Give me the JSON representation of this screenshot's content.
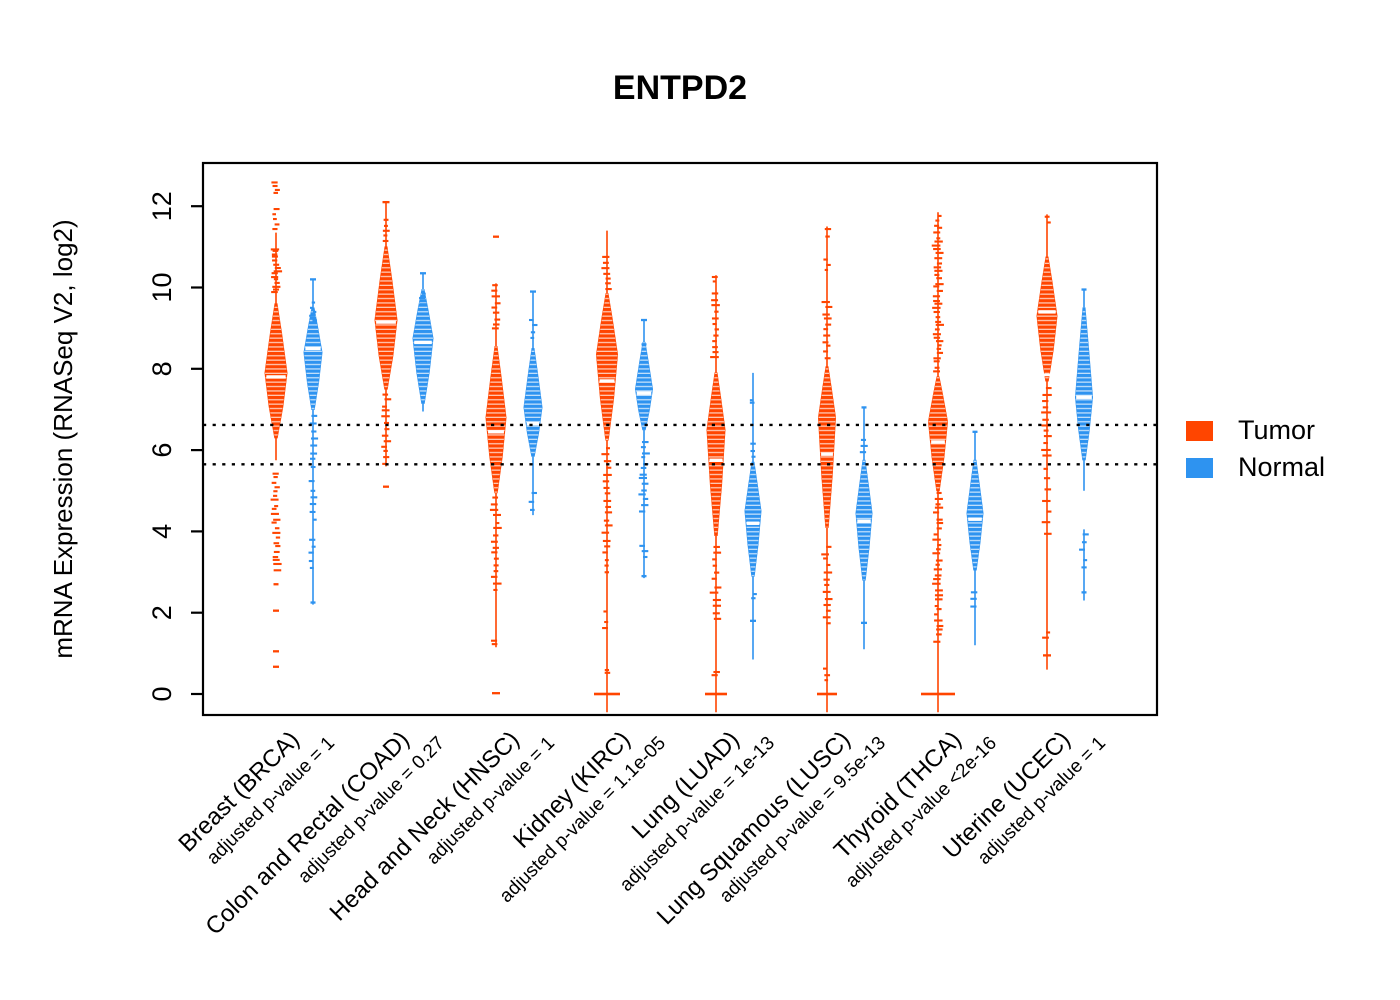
{
  "title": "ENTPD2",
  "y_axis": {
    "label": "mRNA Expression (RNASeq V2, log2)",
    "ticks": [
      0,
      2,
      4,
      6,
      8,
      10,
      12
    ]
  },
  "legend": {
    "items": [
      {
        "label": "Tumor",
        "color": "#FF4500"
      },
      {
        "label": "Normal",
        "color": "#2E93F0"
      }
    ]
  },
  "reference_lines": {
    "values": [
      6.62,
      5.65
    ],
    "style": "dotted",
    "color": "#000000"
  },
  "chart_data": {
    "type": "violin",
    "title": "ENTPD2",
    "ylabel": "mRNA Expression (RNASeq V2, log2)",
    "ylim": [
      -0.5,
      13.1
    ],
    "series": [
      "Tumor",
      "Normal"
    ],
    "legend_position": "right",
    "grid": false,
    "groups": [
      {
        "label": "Breast (BRCA)",
        "pvalue_label": "adjusted p-value = 1",
        "tumor": {
          "median": 7.8,
          "body": [
            6.3,
            9.6
          ],
          "peak": 7.9,
          "halfwidth": 11,
          "stems": [
            [
              5.75,
              11.35
            ]
          ],
          "bands": [
            [
              9.85,
              11.0,
              15,
              6
            ],
            [
              11.35,
              12.0,
              5,
              5
            ],
            [
              12.25,
              12.65,
              4,
              5
            ],
            [
              3.0,
              5.5,
              22,
              6
            ]
          ],
          "points": [
            [
              2.7,
              5
            ],
            [
              2.05,
              6
            ],
            [
              1.05,
              6
            ],
            [
              0.67,
              6
            ]
          ],
          "zero_bar_width": 0,
          "extra_white_band": null
        },
        "normal": {
          "median": 8.5,
          "body": [
            7.0,
            9.5
          ],
          "peak": 8.4,
          "halfwidth": 9,
          "stems": [
            [
              2.2,
              10.2
            ]
          ],
          "bands": [
            [
              9.0,
              9.7,
              6,
              5
            ],
            [
              5.5,
              6.9,
              8,
              5
            ],
            [
              4.2,
              5.3,
              6,
              5
            ],
            [
              3.0,
              3.9,
              5,
              5
            ]
          ],
          "points": [
            [
              10.2,
              6
            ],
            [
              2.25,
              5
            ]
          ],
          "zero_bar_width": 0,
          "extra_white_band": null
        }
      },
      {
        "label": "Colon and Rectal (COAD)",
        "pvalue_label": "adjusted p-value = 0.27",
        "tumor": {
          "median": 9.15,
          "body": [
            7.5,
            11.0
          ],
          "peak": 9.2,
          "halfwidth": 11,
          "stems": [
            [
              5.6,
              12.1
            ]
          ],
          "bands": [
            [
              11.05,
              11.75,
              5,
              5
            ],
            [
              5.6,
              7.45,
              13,
              6
            ]
          ],
          "points": [
            [
              12.1,
              7
            ],
            [
              5.1,
              6
            ]
          ],
          "zero_bar_width": 0,
          "extra_white_band": null
        },
        "normal": {
          "median": 8.65,
          "body": [
            7.15,
            9.95
          ],
          "peak": 8.75,
          "halfwidth": 10,
          "stems": [
            [
              6.95,
              10.35
            ]
          ],
          "bands": [
            [
              9.55,
              9.9,
              3,
              5
            ]
          ],
          "points": [
            [
              10.35,
              6
            ]
          ],
          "zero_bar_width": 0,
          "extra_white_band": null
        }
      },
      {
        "label": "Head and Neck (HNSC)",
        "pvalue_label": "adjusted p-value = 1",
        "tumor": {
          "median": 6.45,
          "body": [
            4.95,
            8.55
          ],
          "peak": 6.8,
          "halfwidth": 10,
          "stems": [
            [
              1.15,
              10.1
            ]
          ],
          "bands": [
            [
              8.9,
              10.1,
              9,
              6
            ],
            [
              2.5,
              4.9,
              16,
              6
            ],
            [
              1.15,
              1.35,
              2,
              5
            ]
          ],
          "points": [
            [
              11.25,
              6
            ],
            [
              0.02,
              8
            ]
          ],
          "zero_bar_width": 0,
          "extra_white_band": null
        },
        "normal": {
          "median": 6.65,
          "body": [
            5.85,
            8.5
          ],
          "peak": 7.05,
          "halfwidth": 9,
          "stems": [
            [
              4.4,
              9.9
            ]
          ],
          "bands": [
            [
              8.7,
              9.3,
              4,
              5
            ],
            [
              4.45,
              5.05,
              3,
              6
            ]
          ],
          "points": [
            [
              9.9,
              6
            ]
          ],
          "zero_bar_width": 0,
          "extra_white_band": null
        }
      },
      {
        "label": "Kidney (KIRC)",
        "pvalue_label": "adjusted p-value = 1.1e-05",
        "tumor": {
          "median": 7.7,
          "body": [
            6.25,
            9.85
          ],
          "peak": 8.35,
          "halfwidth": 10.5,
          "stems": [
            [
              -0.45,
              11.4
            ]
          ],
          "bands": [
            [
              9.9,
              10.8,
              7,
              6
            ],
            [
              2.9,
              6.15,
              20,
              6
            ],
            [
              1.5,
              2.1,
              3,
              5
            ],
            [
              0.5,
              0.65,
              2,
              5
            ]
          ],
          "points": [],
          "zero_bar_width": 26,
          "extra_white_band": null
        },
        "normal": {
          "median": 7.4,
          "body": [
            6.5,
            8.65
          ],
          "peak": 7.5,
          "halfwidth": 8.5,
          "stems": [
            [
              2.85,
              9.2
            ]
          ],
          "bands": [
            [
              4.45,
              6.25,
              14,
              6
            ],
            [
              3.3,
              3.7,
              3,
              5
            ]
          ],
          "points": [
            [
              9.2,
              6
            ],
            [
              8.6,
              5
            ],
            [
              2.9,
              5
            ]
          ],
          "zero_bar_width": 0,
          "extra_white_band": null
        }
      },
      {
        "label": "Lung (LUAD)",
        "pvalue_label": "adjusted p-value = 1e-13",
        "tumor": {
          "median": 5.75,
          "body": [
            3.9,
            7.9
          ],
          "peak": 6.5,
          "halfwidth": 9,
          "stems": [
            [
              -0.45,
              10.3
            ]
          ],
          "bands": [
            [
              8.2,
              9.9,
              12,
              6
            ],
            [
              10.1,
              10.3,
              2,
              5
            ],
            [
              1.75,
              3.7,
              12,
              6
            ],
            [
              0.45,
              0.6,
              2,
              5
            ]
          ],
          "points": [],
          "zero_bar_width": 22,
          "extra_white_band": null
        },
        "normal": {
          "median": 4.2,
          "body": [
            2.9,
            5.7
          ],
          "peak": 4.5,
          "halfwidth": 8,
          "stems": [
            [
              0.85,
              7.9
            ]
          ],
          "bands": [
            [
              5.8,
              6.2,
              3,
              5
            ],
            [
              7.1,
              7.3,
              2,
              5
            ],
            [
              2.3,
              2.55,
              2,
              5
            ]
          ],
          "points": [
            [
              1.8,
              6
            ]
          ],
          "zero_bar_width": 0,
          "extra_white_band": null
        }
      },
      {
        "label": "Lung Squamous (LUSC)",
        "pvalue_label": "adjusted p-value = 9.5e-13",
        "tumor": {
          "median": 5.9,
          "body": [
            4.1,
            8.05
          ],
          "peak": 6.8,
          "halfwidth": 8.5,
          "stems": [
            [
              -0.45,
              11.5
            ]
          ],
          "bands": [
            [
              8.2,
              9.7,
              11,
              6
            ],
            [
              10.35,
              10.75,
              3,
              5
            ],
            [
              11.2,
              11.5,
              2,
              5
            ],
            [
              1.65,
              3.7,
              13,
              6
            ],
            [
              0.25,
              0.7,
              3,
              5
            ]
          ],
          "points": [],
          "zero_bar_width": 20,
          "extra_white_band": null
        },
        "normal": {
          "median": 4.25,
          "body": [
            2.8,
            5.75
          ],
          "peak": 4.45,
          "halfwidth": 8,
          "stems": [
            [
              1.1,
              7.05
            ]
          ],
          "bands": [
            [
              5.85,
              6.35,
              3,
              6
            ]
          ],
          "points": [
            [
              7.05,
              5
            ],
            [
              1.75,
              6
            ]
          ],
          "zero_bar_width": 0,
          "extra_white_band": null
        }
      },
      {
        "label": "Thyroid (THCA)",
        "pvalue_label": "adjusted p-value <2e-16",
        "tumor": {
          "median": 6.2,
          "body": [
            5.0,
            7.8
          ],
          "peak": 6.7,
          "halfwidth": 9.5,
          "stems": [
            [
              -0.45,
              11.85
            ]
          ],
          "bands": [
            [
              7.9,
              11.8,
              38,
              6
            ],
            [
              1.25,
              5.0,
              30,
              6
            ]
          ],
          "points": [],
          "zero_bar_width": 34,
          "extra_white_band": null
        },
        "normal": {
          "median": 4.3,
          "body": [
            3.05,
            5.75
          ],
          "peak": 4.45,
          "halfwidth": 8,
          "stems": [
            [
              1.2,
              6.45
            ]
          ],
          "bands": [
            [
              2.05,
              2.6,
              3,
              5
            ]
          ],
          "points": [
            [
              6.45,
              5
            ]
          ],
          "zero_bar_width": 0,
          "extra_white_band": null
        }
      },
      {
        "label": "Uterine (UCEC)",
        "pvalue_label": "adjusted p-value = 1",
        "tumor": {
          "median": 9.4,
          "body": [
            7.7,
            10.75
          ],
          "peak": 9.3,
          "halfwidth": 10,
          "stems": [
            [
              0.6,
              11.8
            ]
          ],
          "bands": [
            [
              11.5,
              11.8,
              2,
              5
            ],
            [
              5.8,
              7.6,
              12,
              7
            ],
            [
              3.8,
              5.7,
              7,
              6
            ],
            [
              1.35,
              1.6,
              2,
              5
            ]
          ],
          "points": [
            [
              0.95,
              8
            ]
          ],
          "zero_bar_width": 0,
          "extra_white_band": 7.85
        },
        "normal": {
          "median": 7.3,
          "body": [
            5.76,
            9.5
          ],
          "peak": 7.3,
          "halfwidth": 8.5,
          "stems": [
            [
              5.0,
              9.95
            ],
            [
              2.3,
              4.05
            ]
          ],
          "bands": [
            [
              3.0,
              4.05,
              5,
              5
            ]
          ],
          "points": [
            [
              9.95,
              5
            ],
            [
              2.5,
              5
            ]
          ],
          "zero_bar_width": 0,
          "extra_white_band": null
        }
      }
    ]
  }
}
